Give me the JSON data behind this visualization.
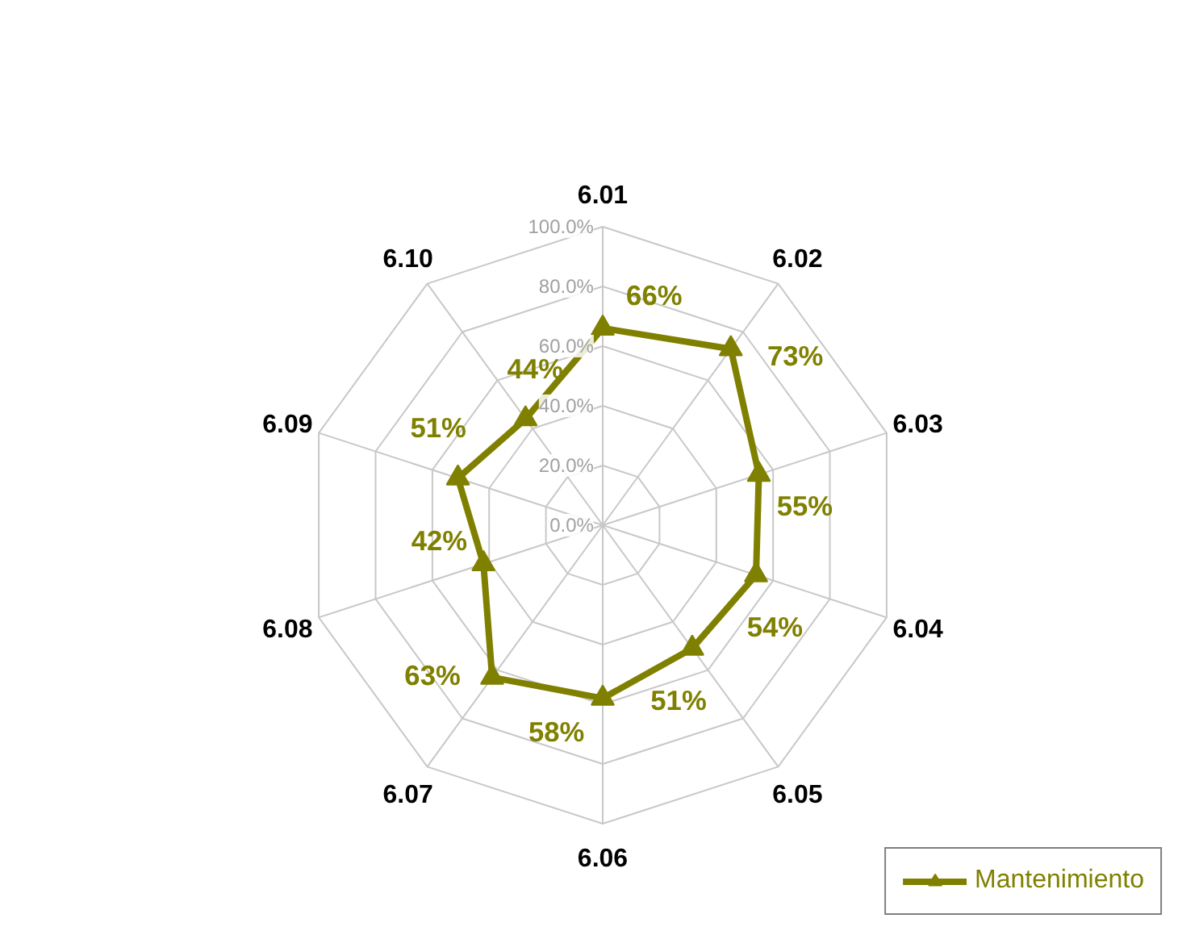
{
  "chart_data": {
    "type": "radar",
    "categories": [
      "6.01",
      "6.02",
      "6.03",
      "6.04",
      "6.05",
      "6.06",
      "6.07",
      "6.08",
      "6.09",
      "6.10"
    ],
    "series": [
      {
        "name": "Mantenimiento",
        "color": "#808000",
        "values": [
          66,
          73,
          55,
          54,
          51,
          58,
          63,
          42,
          51,
          44
        ],
        "value_labels": [
          "66%",
          "73%",
          "55%",
          "54%",
          "51%",
          "58%",
          "63%",
          "42%",
          "51%",
          "44%"
        ]
      }
    ],
    "ylim": [
      0,
      100
    ],
    "yticks": [
      {
        "value": 0,
        "label": "0.0%"
      },
      {
        "value": 20,
        "label": "20.0%"
      },
      {
        "value": 40,
        "label": "40.0%"
      },
      {
        "value": 60,
        "label": "60.0%"
      },
      {
        "value": 80,
        "label": "80.0%"
      },
      {
        "value": 100,
        "label": "100.0%"
      }
    ],
    "grid": true,
    "legend": "bottom right",
    "marker": "triangle",
    "line_style": "solid"
  }
}
